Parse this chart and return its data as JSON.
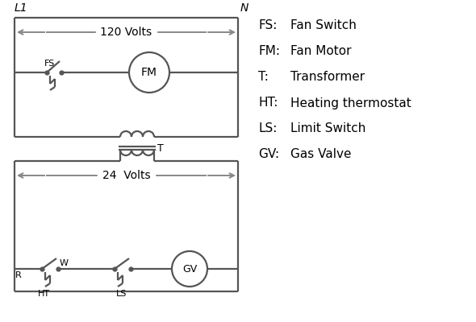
{
  "bg_color": "#ffffff",
  "line_color": "#555555",
  "arrow_color": "#888888",
  "text_color": "#000000",
  "legend_items": [
    [
      "FS:",
      "Fan Switch"
    ],
    [
      "FM:",
      "Fan Motor"
    ],
    [
      "T:",
      "Transformer"
    ],
    [
      "HT:",
      "Heating thermostat"
    ],
    [
      "LS:",
      "Limit Switch"
    ],
    [
      "GV:",
      "Gas Valve"
    ]
  ],
  "L1_label": "L1",
  "N_label": "N",
  "volts120": "120 Volts",
  "volts24": "24  Volts",
  "T_label": "T",
  "R_label": "R",
  "W_label": "W",
  "FS_label": "FS",
  "HT_label": "HT",
  "LS_label": "LS"
}
